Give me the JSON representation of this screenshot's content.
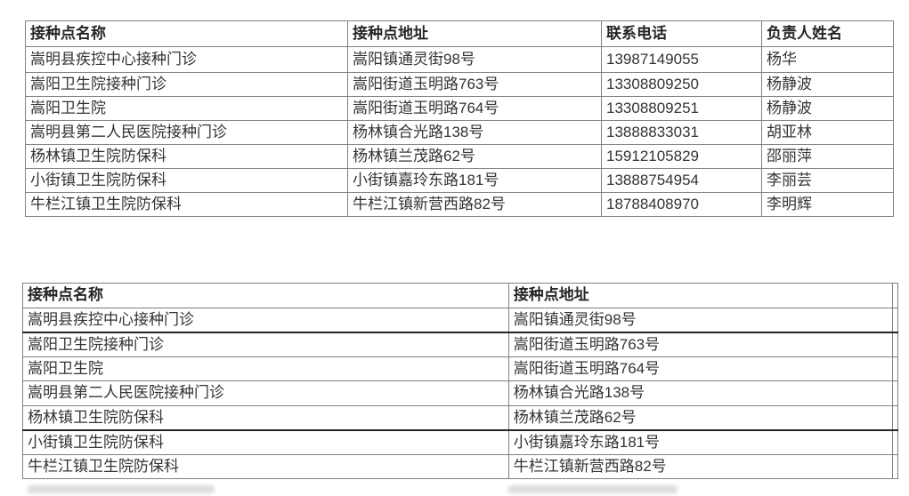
{
  "tables": {
    "table1": {
      "columns": [
        "接种点名称",
        "接种点地址",
        "联系电话",
        "负责人姓名"
      ],
      "rows": [
        [
          "嵩明县疾控中心接种门诊",
          "嵩阳镇通灵街98号",
          "13987149055",
          "杨华"
        ],
        [
          "嵩阳卫生院接种门诊",
          "嵩阳街道玉明路763号",
          "13308809250",
          "杨静波"
        ],
        [
          "嵩阳卫生院",
          "嵩阳街道玉明路764号",
          "13308809251",
          "杨静波"
        ],
        [
          "嵩明县第二人民医院接种门诊",
          "杨林镇合光路138号",
          "13888833031",
          "胡亚林"
        ],
        [
          "杨林镇卫生院防保科",
          "杨林镇兰茂路62号",
          "15912105829",
          "邵丽萍"
        ],
        [
          "小街镇卫生院防保科",
          "小街镇嘉玲东路181号",
          "13888754954",
          "李丽芸"
        ],
        [
          "牛栏江镇卫生院防保科",
          "牛栏江镇新营西路82号",
          "18788408970",
          "李明辉"
        ]
      ]
    },
    "table2": {
      "columns": [
        "接种点名称",
        "接种点地址"
      ],
      "rows": [
        [
          "嵩明县疾控中心接种门诊",
          "嵩阳镇通灵街98号"
        ],
        [
          "嵩阳卫生院接种门诊",
          "嵩阳街道玉明路763号"
        ],
        [
          "嵩阳卫生院",
          "嵩阳街道玉明路764号"
        ],
        [
          "嵩明县第二人民医院接种门诊",
          "杨林镇合光路138号"
        ],
        [
          "杨林镇卫生院防保科",
          "杨林镇兰茂路62号"
        ],
        [
          "小街镇卫生院防保科",
          "小街镇嘉玲东路181号"
        ],
        [
          "牛栏江镇卫生院防保科",
          "牛栏江镇新营西路82号"
        ]
      ]
    }
  },
  "colors": {
    "border": "#808080",
    "thick_border": "#262626",
    "text": "#333333",
    "background": "#ffffff"
  }
}
